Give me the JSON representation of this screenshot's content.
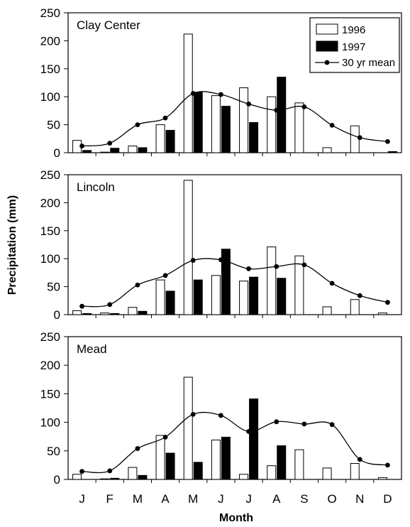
{
  "figure": {
    "ylabel": "Precipitation (mm)",
    "xlabel": "Month"
  },
  "legend": {
    "items": [
      "1996",
      "1997",
      "30 yr mean"
    ]
  },
  "chart_data": [
    {
      "type": "bar",
      "site": "Clay Center",
      "categories": [
        "J",
        "F",
        "M",
        "A",
        "M",
        "J",
        "J",
        "A",
        "S",
        "O",
        "N",
        "D"
      ],
      "ylim": [
        0,
        250
      ],
      "yticks": [
        0,
        50,
        100,
        150,
        200,
        250
      ],
      "series": [
        {
          "name": "1996",
          "kind": "bar",
          "values": [
            22,
            1,
            12,
            50,
            212,
            102,
            116,
            100,
            89,
            9,
            48,
            0
          ]
        },
        {
          "name": "1997",
          "kind": "bar",
          "values": [
            4,
            8,
            9,
            40,
            108,
            83,
            54,
            135,
            0,
            0,
            0,
            2
          ]
        },
        {
          "name": "30 yr mean",
          "kind": "line",
          "values": [
            12,
            17,
            50,
            62,
            106,
            104,
            87,
            76,
            82,
            49,
            27,
            20
          ]
        }
      ]
    },
    {
      "type": "bar",
      "site": "Lincoln",
      "categories": [
        "J",
        "F",
        "M",
        "A",
        "M",
        "J",
        "J",
        "A",
        "S",
        "O",
        "N",
        "D"
      ],
      "ylim": [
        0,
        250
      ],
      "yticks": [
        0,
        50,
        100,
        150,
        200,
        250
      ],
      "series": [
        {
          "name": "1996",
          "kind": "bar",
          "values": [
            7,
            3,
            13,
            62,
            240,
            70,
            60,
            121,
            105,
            14,
            27,
            3
          ]
        },
        {
          "name": "1997",
          "kind": "bar",
          "values": [
            2,
            2,
            6,
            42,
            62,
            117,
            67,
            65,
            0,
            0,
            0,
            0
          ]
        },
        {
          "name": "30 yr mean",
          "kind": "line",
          "values": [
            15,
            18,
            53,
            70,
            97,
            98,
            82,
            86,
            89,
            56,
            34,
            22
          ]
        }
      ]
    },
    {
      "type": "bar",
      "site": "Mead",
      "categories": [
        "J",
        "F",
        "M",
        "A",
        "M",
        "J",
        "J",
        "A",
        "S",
        "O",
        "N",
        "D"
      ],
      "ylim": [
        0,
        250
      ],
      "yticks": [
        0,
        50,
        100,
        150,
        200,
        250
      ],
      "series": [
        {
          "name": "1996",
          "kind": "bar",
          "values": [
            9,
            1,
            21,
            77,
            179,
            69,
            9,
            24,
            52,
            20,
            28,
            3
          ]
        },
        {
          "name": "1997",
          "kind": "bar",
          "values": [
            0,
            2,
            7,
            46,
            30,
            74,
            141,
            59,
            0,
            0,
            0,
            0
          ]
        },
        {
          "name": "30 yr mean",
          "kind": "line",
          "values": [
            14,
            15,
            54,
            74,
            114,
            112,
            84,
            101,
            97,
            96,
            35,
            25
          ]
        }
      ]
    }
  ]
}
